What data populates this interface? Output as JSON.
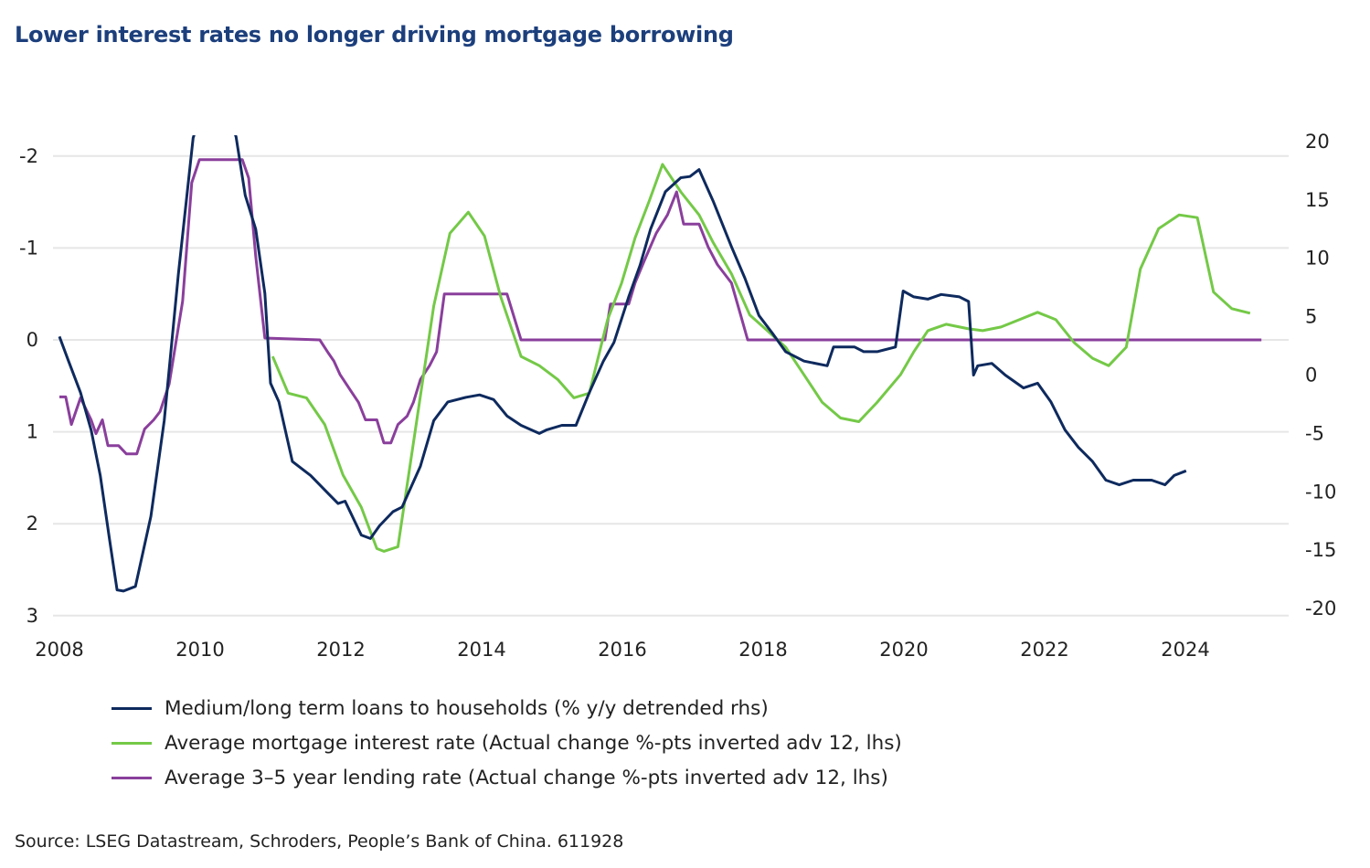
{
  "title": "Lower interest rates no longer driving mortgage borrowing",
  "source": "Source:  LSEG Datastream, Schroders, People’s Bank of China. 611928",
  "chart_data": {
    "type": "line",
    "title": "Lower interest rates no longer driving mortgage borrowing",
    "x_ticks": [
      "2008",
      "2010",
      "2012",
      "2014",
      "2016",
      "2018",
      "2020",
      "2022",
      "2024"
    ],
    "x_range": [
      2008,
      2025.2
    ],
    "left_axis": {
      "ticks": [
        -2,
        -1,
        0,
        1,
        2,
        3
      ],
      "range": [
        -2.2,
        3
      ],
      "inverted": true
    },
    "right_axis": {
      "ticks": [
        20,
        15,
        10,
        5,
        0,
        -5,
        -10,
        -15,
        -20
      ],
      "range": [
        -20,
        20.5
      ]
    },
    "grid": "horizontal",
    "legend_placement": "bottom",
    "series": [
      {
        "name": "Medium/long term loans to households (% y/y detrended rhs)",
        "axis": "right",
        "color": "#0e2a5e",
        "x": [
          2008.0,
          2008.13,
          2008.3,
          2008.45,
          2008.58,
          2008.71,
          2008.82,
          2008.91,
          2009.08,
          2009.3,
          2009.49,
          2009.69,
          2009.9,
          2010.19,
          2010.51,
          2010.64,
          2010.79,
          2010.92,
          2011.0,
          2011.12,
          2011.31,
          2011.57,
          2011.83,
          2011.96,
          2012.06,
          2012.29,
          2012.42,
          2012.55,
          2012.74,
          2012.87,
          2013.13,
          2013.32,
          2013.52,
          2013.78,
          2013.97,
          2014.17,
          2014.36,
          2014.56,
          2014.82,
          2014.92,
          2015.14,
          2015.34,
          2015.53,
          2015.73,
          2015.88,
          2016.09,
          2016.25,
          2016.4,
          2016.61,
          2016.83,
          2016.96,
          2017.09,
          2017.29,
          2017.55,
          2017.74,
          2017.94,
          2018.13,
          2018.32,
          2018.58,
          2018.91,
          2019.0,
          2019.3,
          2019.43,
          2019.62,
          2019.88,
          2019.99,
          2020.14,
          2020.34,
          2020.53,
          2020.79,
          2020.92,
          2020.99,
          2021.05,
          2021.25,
          2021.44,
          2021.7,
          2021.9,
          2022.09,
          2022.29,
          2022.48,
          2022.68,
          2022.87,
          2023.06,
          2023.26,
          2023.52,
          2023.71,
          2023.84,
          2024.01
        ],
        "y": [
          3.3,
          1.2,
          -1.5,
          -4.7,
          -8.6,
          -14,
          -18.4,
          -18.5,
          -18.1,
          -12.1,
          -3.9,
          8.6,
          20.3,
          26,
          20.4,
          15.4,
          12.5,
          7,
          -0.7,
          -2.3,
          -7.4,
          -8.6,
          -10.2,
          -11,
          -10.8,
          -13.7,
          -14,
          -12.9,
          -11.7,
          -11.3,
          -7.8,
          -3.9,
          -2.3,
          -1.9,
          -1.7,
          -2.1,
          -3.5,
          -4.3,
          -5,
          -4.7,
          -4.3,
          -4.3,
          -1.5,
          1.2,
          2.8,
          6.7,
          9.4,
          12.5,
          15.7,
          16.9,
          17,
          17.6,
          14.9,
          11,
          8.3,
          5.1,
          3.6,
          2,
          1.2,
          0.8,
          2.4,
          2.4,
          2,
          2,
          2.4,
          7.2,
          6.7,
          6.5,
          6.9,
          6.7,
          6.3,
          0,
          0.8,
          1,
          0,
          -1.1,
          -0.7,
          -2.3,
          -4.7,
          -6.2,
          -7.4,
          -9,
          -9.4,
          -9,
          -9,
          -9.4,
          -8.6,
          -8.2
        ]
      },
      {
        "name": "Average mortgage interest rate (Actual change %-pts inverted adv 12, lhs)",
        "axis": "left",
        "color": "#74c947",
        "x": [
          2011.03,
          2011.25,
          2011.51,
          2011.77,
          2012.03,
          2012.29,
          2012.51,
          2012.61,
          2012.81,
          2013.06,
          2013.32,
          2013.55,
          2013.81,
          2014.04,
          2014.27,
          2014.56,
          2014.82,
          2015.08,
          2015.31,
          2015.53,
          2015.79,
          2015.99,
          2016.18,
          2016.38,
          2016.57,
          2016.83,
          2017.09,
          2017.29,
          2017.55,
          2017.81,
          2018.06,
          2018.32,
          2018.58,
          2018.84,
          2019.1,
          2019.36,
          2019.62,
          2019.95,
          2020.14,
          2020.34,
          2020.6,
          2020.92,
          2021.12,
          2021.38,
          2021.64,
          2021.9,
          2022.16,
          2022.42,
          2022.68,
          2022.91,
          2023.16,
          2023.36,
          2023.62,
          2023.91,
          2024.17,
          2024.4,
          2024.66,
          2024.92
        ],
        "y": [
          0.18,
          0.58,
          0.63,
          0.92,
          1.47,
          1.82,
          2.27,
          2.3,
          2.25,
          0.97,
          -0.37,
          -1.16,
          -1.39,
          -1.13,
          -0.47,
          0.18,
          0.28,
          0.43,
          0.63,
          0.58,
          -0.22,
          -0.62,
          -1.11,
          -1.51,
          -1.91,
          -1.61,
          -1.36,
          -1.06,
          -0.72,
          -0.27,
          -0.1,
          0.08,
          0.38,
          0.68,
          0.85,
          0.89,
          0.68,
          0.38,
          0.13,
          -0.1,
          -0.17,
          -0.12,
          -0.1,
          -0.14,
          -0.22,
          -0.3,
          -0.22,
          0.03,
          0.2,
          0.28,
          0.08,
          -0.77,
          -1.21,
          -1.36,
          -1.33,
          -0.52,
          -0.34,
          -0.29
        ]
      },
      {
        "name": "Average 3–5 year lending rate (Actual change %-pts inverted adv 12, lhs)",
        "axis": "left",
        "color": "#8a3f9c",
        "x": [
          2008.0,
          2008.09,
          2008.17,
          2008.3,
          2008.45,
          2008.52,
          2008.61,
          2008.69,
          2008.84,
          2008.95,
          2009.1,
          2009.21,
          2009.34,
          2009.43,
          2009.56,
          2009.75,
          2009.88,
          2009.99,
          2010.6,
          2010.69,
          2010.79,
          2010.92,
          2011.7,
          2011.81,
          2011.9,
          2011.99,
          2012.12,
          2012.25,
          2012.35,
          2012.51,
          2012.61,
          2012.71,
          2012.81,
          2012.94,
          2013.03,
          2013.13,
          2013.26,
          2013.36,
          2013.47,
          2014.36,
          2014.56,
          2015.75,
          2015.83,
          2016.09,
          2016.18,
          2016.31,
          2016.48,
          2016.64,
          2016.77,
          2016.87,
          2017.09,
          2017.22,
          2017.35,
          2017.55,
          2017.68,
          2017.78,
          2025.08
        ],
        "y": [
          0.62,
          0.62,
          0.92,
          0.63,
          0.87,
          1.02,
          0.87,
          1.15,
          1.15,
          1.24,
          1.24,
          0.97,
          0.87,
          0.78,
          0.48,
          -0.42,
          -1.71,
          -1.96,
          -1.96,
          -1.76,
          -0.91,
          -0.02,
          0,
          0.13,
          0.23,
          0.38,
          0.53,
          0.68,
          0.87,
          0.87,
          1.12,
          1.12,
          0.92,
          0.83,
          0.68,
          0.43,
          0.28,
          0.13,
          -0.5,
          -0.5,
          0,
          0,
          -0.39,
          -0.39,
          -0.62,
          -0.86,
          -1.16,
          -1.36,
          -1.61,
          -1.26,
          -1.26,
          -1.01,
          -0.82,
          -0.62,
          -0.27,
          0,
          0
        ]
      }
    ]
  }
}
